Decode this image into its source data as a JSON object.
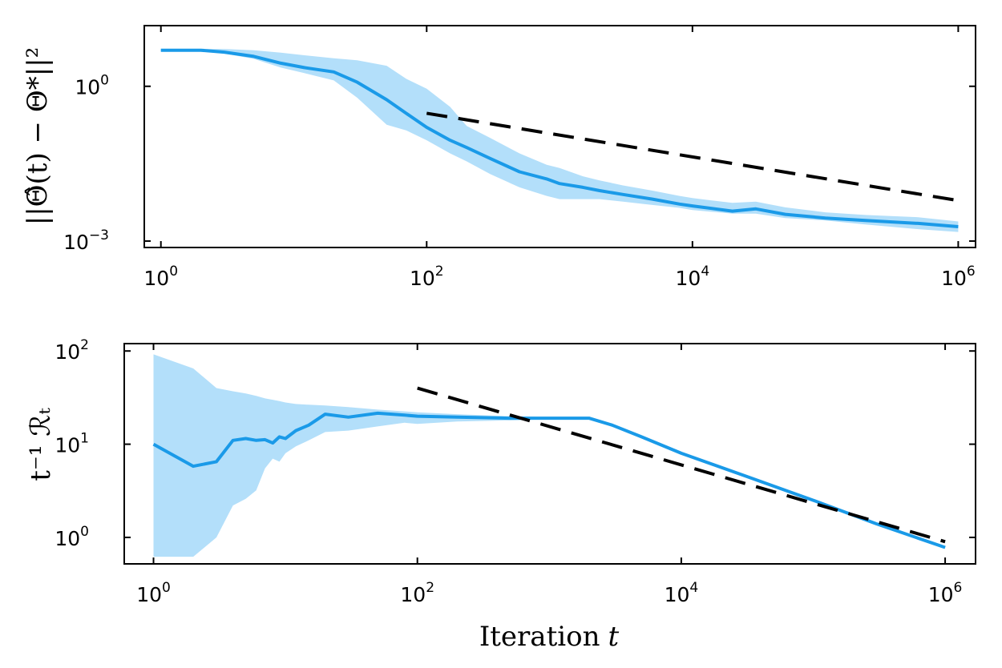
{
  "figure": {
    "xlabel_text": "Iteration",
    "xlabel_var": "t"
  },
  "colors": {
    "mean_line": "#1a9ae8",
    "band_fill": "#b3dffa",
    "ref_line": "#000000"
  },
  "chart_data": [
    {
      "type": "line",
      "id": "top",
      "ylabel": "||Θ̂(t) − Θ*||²",
      "x_scale": "log",
      "y_scale": "log",
      "xlim": [
        0.75,
        1350000
      ],
      "ylim": [
        0.00075,
        15
      ],
      "x_ticks": [
        {
          "value": 1,
          "base": "10",
          "exp": "0"
        },
        {
          "value": 100,
          "base": "10",
          "exp": "2"
        },
        {
          "value": 10000,
          "base": "10",
          "exp": "4"
        },
        {
          "value": 1000000,
          "base": "10",
          "exp": "6"
        }
      ],
      "y_ticks": [
        {
          "value": 0.001,
          "base": "10",
          "exp": "−3"
        },
        {
          "value": 1,
          "base": "10",
          "exp": "0"
        }
      ],
      "series": [
        {
          "kind": "mean",
          "x": [
            1,
            2,
            3,
            5,
            8,
            12,
            20,
            30,
            50,
            70,
            100,
            150,
            200,
            300,
            500,
            800,
            1000,
            1500,
            2000,
            3000,
            5000,
            8000,
            10000,
            20000,
            30000,
            50000,
            100000,
            200000,
            500000,
            1000000
          ],
          "y": [
            5.0,
            5.0,
            4.6,
            3.8,
            2.8,
            2.3,
            1.9,
            1.2,
            0.55,
            0.3,
            0.16,
            0.09,
            0.065,
            0.04,
            0.022,
            0.016,
            0.013,
            0.011,
            0.0095,
            0.008,
            0.0065,
            0.0052,
            0.0048,
            0.0038,
            0.0042,
            0.0033,
            0.0028,
            0.0025,
            0.0022,
            0.0019
          ]
        },
        {
          "kind": "band",
          "x": [
            1,
            2,
            3,
            5,
            8,
            12,
            20,
            30,
            50,
            70,
            100,
            150,
            200,
            300,
            500,
            800,
            1000,
            1500,
            2000,
            3000,
            5000,
            8000,
            10000,
            20000,
            30000,
            50000,
            100000,
            200000,
            500000,
            1000000
          ],
          "y_lower": [
            4.8,
            4.8,
            4.3,
            3.4,
            2.3,
            1.8,
            1.3,
            0.6,
            0.18,
            0.14,
            0.09,
            0.05,
            0.035,
            0.02,
            0.011,
            0.0075,
            0.0065,
            0.0065,
            0.0065,
            0.0058,
            0.005,
            0.0044,
            0.004,
            0.0034,
            0.0034,
            0.0028,
            0.0025,
            0.0021,
            0.0017,
            0.0015
          ],
          "y_upper": [
            5.3,
            5.3,
            5.3,
            5.0,
            4.5,
            4.0,
            3.5,
            3.2,
            2.5,
            1.4,
            0.9,
            0.4,
            0.17,
            0.1,
            0.05,
            0.03,
            0.026,
            0.018,
            0.015,
            0.012,
            0.0095,
            0.0075,
            0.0068,
            0.0055,
            0.0058,
            0.0045,
            0.0036,
            0.0032,
            0.0029,
            0.0024
          ]
        },
        {
          "kind": "reference",
          "x": [
            100,
            1000000
          ],
          "y": [
            0.3,
            0.0061
          ]
        }
      ]
    },
    {
      "type": "line",
      "id": "bottom",
      "ylabel": "t⁻¹ ℛₜ",
      "x_scale": "log",
      "y_scale": "log",
      "xlim": [
        0.6,
        1700000
      ],
      "ylim": [
        0.52,
        120
      ],
      "x_ticks": [
        {
          "value": 1,
          "base": "10",
          "exp": "0"
        },
        {
          "value": 100,
          "base": "10",
          "exp": "2"
        },
        {
          "value": 10000,
          "base": "10",
          "exp": "4"
        },
        {
          "value": 1000000,
          "base": "10",
          "exp": "6"
        }
      ],
      "y_ticks": [
        {
          "value": 1,
          "base": "10",
          "exp": "0"
        },
        {
          "value": 10,
          "base": "10",
          "exp": "1"
        },
        {
          "value": 100,
          "base": "10",
          "exp": "2"
        }
      ],
      "series": [
        {
          "kind": "mean",
          "x": [
            1,
            2,
            3,
            4,
            5,
            6,
            7,
            8,
            9,
            10,
            12,
            15,
            20,
            30,
            50,
            80,
            100,
            200,
            500,
            1000,
            2000,
            3000,
            5000,
            10000,
            30000,
            100000,
            300000,
            1000000
          ],
          "y": [
            10.0,
            5.8,
            6.5,
            11.0,
            11.5,
            11.0,
            11.2,
            10.3,
            12.0,
            11.5,
            14.0,
            16.0,
            21.0,
            19.5,
            21.5,
            20.5,
            20.0,
            19.5,
            19.0,
            19.0,
            19.0,
            16.0,
            12.0,
            8.0,
            4.6,
            2.5,
            1.4,
            0.78
          ]
        },
        {
          "kind": "band",
          "x": [
            1,
            2,
            3,
            4,
            5,
            6,
            7,
            8,
            9,
            10,
            12,
            15,
            20,
            30,
            50,
            80,
            100,
            200,
            500,
            1000,
            2000,
            3000,
            5000,
            10000,
            30000,
            100000,
            300000,
            1000000
          ],
          "y_lower": [
            0.62,
            0.62,
            1.0,
            2.2,
            2.6,
            3.2,
            5.5,
            7.0,
            6.5,
            8.0,
            9.5,
            11.0,
            13.5,
            14.0,
            15.5,
            17.0,
            16.5,
            17.5,
            18.0,
            18.5,
            18.6,
            15.7,
            11.8,
            7.9,
            4.55,
            2.48,
            1.39,
            0.77
          ],
          "y_upper": [
            92.0,
            65.0,
            40.0,
            37.0,
            35.0,
            33.0,
            31.0,
            30.0,
            29.0,
            28.0,
            27.0,
            26.5,
            26.0,
            25.0,
            23.5,
            22.5,
            22.0,
            21.0,
            20.0,
            19.5,
            19.4,
            16.3,
            12.2,
            8.1,
            4.65,
            2.52,
            1.41,
            0.79
          ]
        },
        {
          "kind": "reference",
          "x": [
            100,
            1000000
          ],
          "y": [
            40.0,
            0.9
          ]
        }
      ]
    }
  ]
}
